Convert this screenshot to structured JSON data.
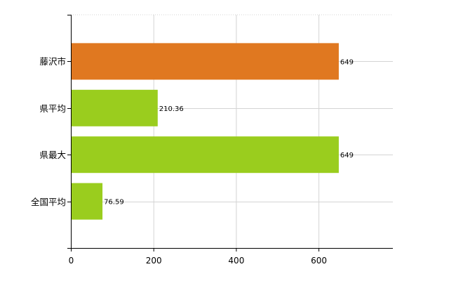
{
  "chart_data": {
    "type": "bar",
    "orientation": "horizontal",
    "categories": [
      "藤沢市",
      "県平均",
      "県最大",
      "全国平均"
    ],
    "values": [
      649,
      210.36,
      649,
      76.59
    ],
    "value_labels": [
      "649",
      "210.36",
      "649",
      "76.59"
    ],
    "bar_colors": [
      "#e07820",
      "#9acd1e",
      "#9acd1e",
      "#9acd1e"
    ],
    "title": "",
    "xlabel": "",
    "ylabel": "",
    "xlim": [
      0,
      780
    ],
    "x_ticks": [
      0,
      200,
      400,
      600
    ],
    "x_tick_labels": [
      "0",
      "200",
      "400",
      "600"
    ],
    "grid": true,
    "legend": "none"
  }
}
